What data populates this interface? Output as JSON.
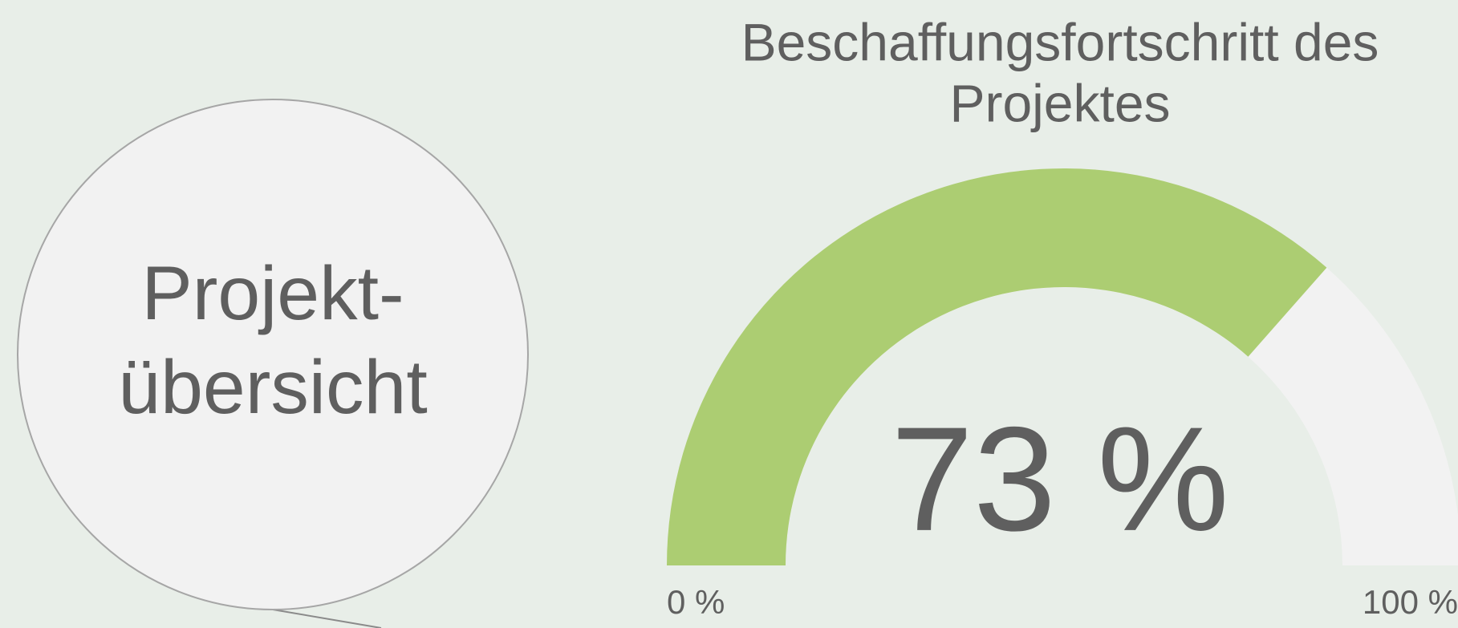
{
  "sidebar": {
    "label_lines": [
      "Projekt-",
      "übersicht"
    ]
  },
  "chart_data": {
    "type": "gauge",
    "title": [
      "Beschaffungsfortschritt des",
      "Projektes"
    ],
    "value": 73,
    "value_labels": [
      "73 %"
    ],
    "ylim": [
      0,
      100
    ],
    "yticks": [
      {
        "value": 0,
        "label": "0 %"
      },
      {
        "value": 100,
        "label": "100 %"
      }
    ],
    "color": "#accd72",
    "track_color": "#f2f2f2"
  }
}
